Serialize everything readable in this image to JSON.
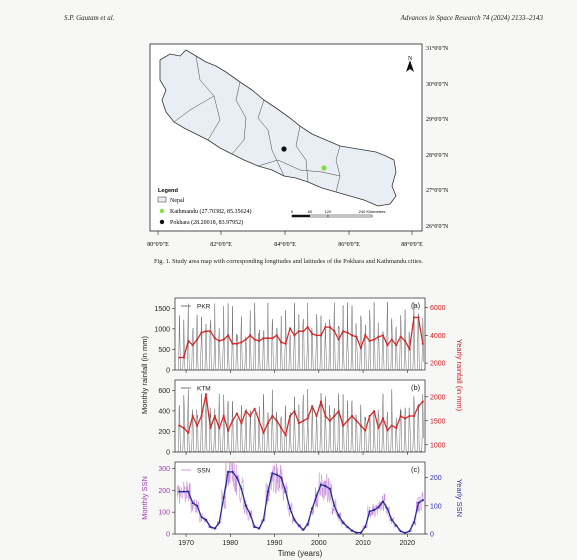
{
  "header": {
    "authors": "S.P. Gautam et al.",
    "journal": "Advances in Space Research 74 (2024) 2133–2143"
  },
  "map": {
    "lat_labels": [
      "31°0'0\"N",
      "30°0'0\"N",
      "29°0'0\"N",
      "28°0'0\"N",
      "27°0'0\"N",
      "26°0'0\"N"
    ],
    "lon_labels": [
      "80°0'0\"E",
      "82°0'0\"E",
      "84°0'0\"E",
      "86°0'0\"E",
      "88°0'0\"E"
    ],
    "north_label": "N",
    "legend": {
      "title": "Legend",
      "items": [
        {
          "label": "Nepal",
          "symbol": "box"
        },
        {
          "label": "Kathmandu (27.70382, 85.35624)",
          "symbol": "dot",
          "color": "#7fe03a"
        },
        {
          "label": "Pokhara (28.20018, 83.97952)",
          "symbol": "dot",
          "color": "#111111"
        }
      ]
    },
    "scalebar": {
      "ticks": [
        "0",
        "60",
        "120",
        "240 Kilometers"
      ]
    },
    "cities": [
      {
        "name": "Kathmandu",
        "lat": 27.70382,
        "lon": 85.35624,
        "color": "#7fe03a"
      },
      {
        "name": "Pokhara",
        "lat": 28.20018,
        "lon": 83.97952,
        "color": "#111111"
      }
    ]
  },
  "caption": "Fig. 1. Study area map with corresponding longitudes and latitudes of the Pokhara and Kathmandu cities.",
  "chart_data": {
    "type": "line",
    "xlabel": "Time (years)",
    "x_ticks": [
      1970,
      1980,
      1990,
      2000,
      2010,
      2020
    ],
    "xlim": [
      1967.5,
      2024
    ],
    "panels": [
      {
        "id": "a",
        "panel_label": "(a)",
        "legend": "PKR",
        "left_axis": {
          "label": "Monthly rainfall (in mm)",
          "ticks": [
            0,
            500,
            1000,
            1500
          ],
          "lim": [
            0,
            1750
          ],
          "color": "#222222"
        },
        "right_axis": {
          "ticks": [
            2000,
            4000,
            6000
          ],
          "lim": [
            1500,
            6700
          ],
          "color": "#cc2222"
        },
        "series": [
          {
            "name": "PKR",
            "kind": "monthly",
            "color": "#555555",
            "peak_range": [
              700,
              1650
            ]
          },
          {
            "kind": "yearly",
            "color": "#d42a2a",
            "years": [
              1968,
              1969,
              1970,
              1971,
              1972,
              1973,
              1974,
              1975,
              1976,
              1977,
              1978,
              1979,
              1980,
              1981,
              1982,
              1983,
              1984,
              1985,
              1986,
              1987,
              1988,
              1989,
              1990,
              1991,
              1992,
              1993,
              1994,
              1995,
              1996,
              1997,
              1998,
              1999,
              2000,
              2001,
              2002,
              2003,
              2004,
              2005,
              2006,
              2007,
              2008,
              2009,
              2010,
              2011,
              2012,
              2013,
              2014,
              2015,
              2016,
              2017,
              2018,
              2019,
              2020,
              2021,
              2022,
              2023
            ],
            "values": [
              2400,
              2400,
              3600,
              3300,
              3700,
              4200,
              4300,
              4300,
              3800,
              3600,
              3700,
              4000,
              3400,
              3400,
              3500,
              3700,
              4000,
              3700,
              3600,
              3800,
              3800,
              3800,
              4000,
              3500,
              3400,
              4500,
              4000,
              4300,
              4300,
              4600,
              4100,
              4000,
              4000,
              4600,
              4600,
              4300,
              3700,
              4300,
              4200,
              4000,
              3900,
              3100,
              4000,
              3600,
              3700,
              3900,
              4000,
              3300,
              3700,
              3300,
              3900,
              3600,
              3000,
              5300,
              5300,
              3400
            ]
          }
        ]
      },
      {
        "id": "b",
        "panel_label": "(b)",
        "legend": "KTM",
        "left_axis": {
          "label": "",
          "ticks": [
            0,
            200,
            400,
            600
          ],
          "lim": [
            0,
            700
          ],
          "color": "#222222"
        },
        "right_axis": {
          "label": "Yearly rainfall (in mm)",
          "ticks": [
            1000,
            1500,
            2000
          ],
          "lim": [
            850,
            2350
          ],
          "color": "#cc2222"
        },
        "series": [
          {
            "name": "KTM",
            "kind": "monthly",
            "color": "#555555",
            "peak_range": [
              280,
              620
            ]
          },
          {
            "kind": "yearly",
            "color": "#d42a2a",
            "years": [
              1968,
              1969,
              1970,
              1971,
              1972,
              1973,
              1974,
              1975,
              1976,
              1977,
              1978,
              1979,
              1980,
              1981,
              1982,
              1983,
              1984,
              1985,
              1986,
              1987,
              1988,
              1989,
              1990,
              1991,
              1992,
              1993,
              1994,
              1995,
              1996,
              1997,
              1998,
              1999,
              2000,
              2001,
              2002,
              2003,
              2004,
              2005,
              2006,
              2007,
              2008,
              2009,
              2010,
              2011,
              2012,
              2013,
              2014,
              2015,
              2016,
              2017,
              2018,
              2019,
              2020,
              2021,
              2022,
              2023
            ],
            "values": [
              1400,
              1350,
              1250,
              1600,
              1400,
              1600,
              2050,
              1350,
              1600,
              1350,
              1600,
              1300,
              1500,
              1650,
              1450,
              1700,
              1600,
              1750,
              1500,
              1250,
              1450,
              1600,
              1500,
              1350,
              1200,
              1600,
              1700,
              1450,
              1500,
              1550,
              1800,
              1600,
              1900,
              1600,
              1500,
              1600,
              1700,
              1400,
              1500,
              1600,
              1500,
              1400,
              1300,
              1600,
              1700,
              1350,
              1550,
              1300,
              1400,
              1350,
              1600,
              1550,
              1600,
              1600,
              1800,
              1900
            ]
          }
        ]
      },
      {
        "id": "c",
        "panel_label": "(c)",
        "legend": "SSN",
        "left_axis": {
          "label": "Monthly SSN",
          "ticks": [
            0,
            100,
            200,
            300
          ],
          "lim": [
            0,
            330
          ],
          "color": "#a23bb5"
        },
        "right_axis": {
          "label": "Yearly SSN",
          "ticks": [
            0,
            100,
            200
          ],
          "lim": [
            0,
            255
          ],
          "color": "#3333aa"
        },
        "series": [
          {
            "name": "SSN",
            "kind": "monthly",
            "color": "#c27fd6"
          },
          {
            "kind": "yearly",
            "color": "#2a2a9a",
            "years": [
              1968,
              1969,
              1970,
              1971,
              1972,
              1973,
              1974,
              1975,
              1976,
              1977,
              1978,
              1979,
              1980,
              1981,
              1982,
              1983,
              1984,
              1985,
              1986,
              1987,
              1988,
              1989,
              1990,
              1991,
              1992,
              1993,
              1994,
              1995,
              1996,
              1997,
              1998,
              1999,
              2000,
              2001,
              2002,
              2003,
              2004,
              2005,
              2006,
              2007,
              2008,
              2009,
              2010,
              2011,
              2012,
              2013,
              2014,
              2015,
              2016,
              2017,
              2018,
              2019,
              2020,
              2021,
              2022,
              2023
            ],
            "values": [
              150,
              150,
              150,
              110,
              100,
              60,
              50,
              25,
              20,
              40,
              130,
              220,
              220,
              200,
              160,
              100,
              70,
              25,
              20,
              50,
              150,
              215,
              210,
              200,
              150,
              90,
              50,
              30,
              15,
              35,
              90,
              135,
              175,
              170,
              160,
              100,
              65,
              40,
              25,
              12,
              5,
              5,
              25,
              80,
              85,
              95,
              115,
              90,
              50,
              30,
              10,
              4,
              10,
              40,
              110,
              120
            ]
          }
        ]
      }
    ]
  }
}
